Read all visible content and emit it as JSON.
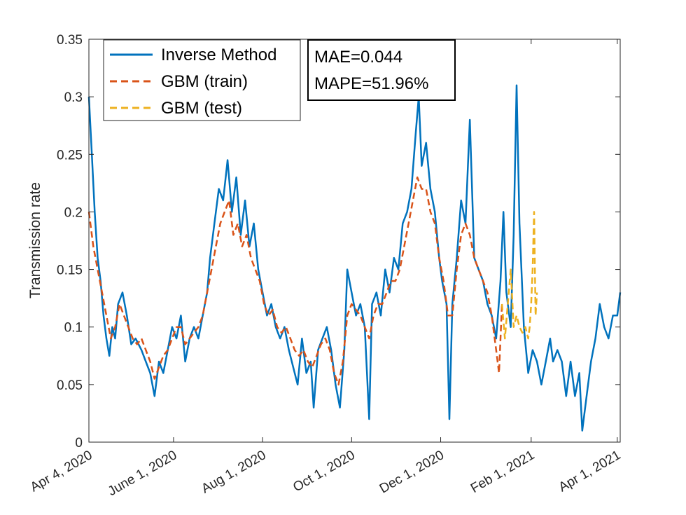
{
  "chart_data": {
    "type": "line",
    "title": "",
    "xlabel": "",
    "ylabel": "Transmission rate",
    "xlim": [
      "2020-04-04",
      "2021-04-03"
    ],
    "ylim": [
      0,
      0.35
    ],
    "grid": false,
    "legend_position": "top-left",
    "x_ticks": [
      {
        "date": "2020-04-04",
        "label": "Apr 4, 2020"
      },
      {
        "date": "2020-06-01",
        "label": "June 1, 2020"
      },
      {
        "date": "2020-08-01",
        "label": "Aug 1, 2020"
      },
      {
        "date": "2020-10-01",
        "label": "Oct 1, 2020"
      },
      {
        "date": "2020-12-01",
        "label": "Dec 1, 2020"
      },
      {
        "date": "2021-02-01",
        "label": "Feb 1, 2021"
      },
      {
        "date": "2021-04-01",
        "label": "Apr 1, 2021"
      }
    ],
    "y_ticks": [
      {
        "value": 0,
        "label": "0"
      },
      {
        "value": 0.05,
        "label": "0.05"
      },
      {
        "value": 0.1,
        "label": "0.1"
      },
      {
        "value": 0.15,
        "label": "0.15"
      },
      {
        "value": 0.2,
        "label": "0.2"
      },
      {
        "value": 0.25,
        "label": "0.25"
      },
      {
        "value": 0.3,
        "label": "0.3"
      },
      {
        "value": 0.35,
        "label": "0.35"
      }
    ],
    "annotation": [
      "MAE=0.044",
      "MAPE=51.96%"
    ],
    "series": [
      {
        "name": "Inverse Method",
        "color": "#0072BD",
        "style": "solid",
        "points": [
          [
            "2020-04-04",
            0.3
          ],
          [
            "2020-04-06",
            0.25
          ],
          [
            "2020-04-08",
            0.2
          ],
          [
            "2020-04-10",
            0.16
          ],
          [
            "2020-04-12",
            0.14
          ],
          [
            "2020-04-14",
            0.11
          ],
          [
            "2020-04-16",
            0.09
          ],
          [
            "2020-04-18",
            0.075
          ],
          [
            "2020-04-20",
            0.1
          ],
          [
            "2020-04-22",
            0.09
          ],
          [
            "2020-04-24",
            0.12
          ],
          [
            "2020-04-27",
            0.13
          ],
          [
            "2020-04-30",
            0.11
          ],
          [
            "2020-05-03",
            0.085
          ],
          [
            "2020-05-06",
            0.09
          ],
          [
            "2020-05-10",
            0.08
          ],
          [
            "2020-05-13",
            0.07
          ],
          [
            "2020-05-16",
            0.06
          ],
          [
            "2020-05-19",
            0.04
          ],
          [
            "2020-05-22",
            0.07
          ],
          [
            "2020-05-25",
            0.06
          ],
          [
            "2020-05-28",
            0.08
          ],
          [
            "2020-05-31",
            0.1
          ],
          [
            "2020-06-03",
            0.09
          ],
          [
            "2020-06-06",
            0.11
          ],
          [
            "2020-06-09",
            0.07
          ],
          [
            "2020-06-12",
            0.09
          ],
          [
            "2020-06-15",
            0.1
          ],
          [
            "2020-06-18",
            0.09
          ],
          [
            "2020-06-21",
            0.11
          ],
          [
            "2020-06-24",
            0.13
          ],
          [
            "2020-06-26",
            0.16
          ],
          [
            "2020-06-29",
            0.19
          ],
          [
            "2020-07-02",
            0.22
          ],
          [
            "2020-07-05",
            0.21
          ],
          [
            "2020-07-08",
            0.245
          ],
          [
            "2020-07-11",
            0.2
          ],
          [
            "2020-07-14",
            0.23
          ],
          [
            "2020-07-17",
            0.18
          ],
          [
            "2020-07-20",
            0.21
          ],
          [
            "2020-07-23",
            0.17
          ],
          [
            "2020-07-26",
            0.19
          ],
          [
            "2020-07-29",
            0.15
          ],
          [
            "2020-08-01",
            0.13
          ],
          [
            "2020-08-04",
            0.11
          ],
          [
            "2020-08-07",
            0.12
          ],
          [
            "2020-08-10",
            0.1
          ],
          [
            "2020-08-13",
            0.09
          ],
          [
            "2020-08-16",
            0.1
          ],
          [
            "2020-08-19",
            0.08
          ],
          [
            "2020-08-22",
            0.065
          ],
          [
            "2020-08-25",
            0.05
          ],
          [
            "2020-08-28",
            0.09
          ],
          [
            "2020-08-31",
            0.06
          ],
          [
            "2020-09-03",
            0.07
          ],
          [
            "2020-09-05",
            0.03
          ],
          [
            "2020-09-08",
            0.08
          ],
          [
            "2020-09-11",
            0.09
          ],
          [
            "2020-09-14",
            0.1
          ],
          [
            "2020-09-17",
            0.08
          ],
          [
            "2020-09-20",
            0.05
          ],
          [
            "2020-09-23",
            0.03
          ],
          [
            "2020-09-26",
            0.08
          ],
          [
            "2020-09-28",
            0.15
          ],
          [
            "2020-10-01",
            0.13
          ],
          [
            "2020-10-04",
            0.11
          ],
          [
            "2020-10-07",
            0.12
          ],
          [
            "2020-10-10",
            0.1
          ],
          [
            "2020-10-13",
            0.02
          ],
          [
            "2020-10-15",
            0.12
          ],
          [
            "2020-10-18",
            0.13
          ],
          [
            "2020-10-21",
            0.11
          ],
          [
            "2020-10-24",
            0.15
          ],
          [
            "2020-10-27",
            0.13
          ],
          [
            "2020-10-30",
            0.16
          ],
          [
            "2020-11-02",
            0.15
          ],
          [
            "2020-11-05",
            0.19
          ],
          [
            "2020-11-08",
            0.2
          ],
          [
            "2020-11-11",
            0.22
          ],
          [
            "2020-11-14",
            0.27
          ],
          [
            "2020-11-16",
            0.3
          ],
          [
            "2020-11-18",
            0.24
          ],
          [
            "2020-11-21",
            0.26
          ],
          [
            "2020-11-24",
            0.22
          ],
          [
            "2020-11-27",
            0.2
          ],
          [
            "2020-11-30",
            0.16
          ],
          [
            "2020-12-02",
            0.14
          ],
          [
            "2020-12-05",
            0.12
          ],
          [
            "2020-12-07",
            0.02
          ],
          [
            "2020-12-09",
            0.12
          ],
          [
            "2020-12-12",
            0.16
          ],
          [
            "2020-12-15",
            0.21
          ],
          [
            "2020-12-18",
            0.19
          ],
          [
            "2020-12-21",
            0.28
          ],
          [
            "2020-12-24",
            0.16
          ],
          [
            "2020-12-27",
            0.15
          ],
          [
            "2020-12-30",
            0.14
          ],
          [
            "2021-01-02",
            0.12
          ],
          [
            "2021-01-05",
            0.11
          ],
          [
            "2021-01-08",
            0.09
          ],
          [
            "2021-01-11",
            0.14
          ],
          [
            "2021-01-13",
            0.2
          ],
          [
            "2021-01-15",
            0.13
          ],
          [
            "2021-01-18",
            0.1
          ],
          [
            "2021-01-20",
            0.18
          ],
          [
            "2021-01-22",
            0.31
          ],
          [
            "2021-01-24",
            0.19
          ],
          [
            "2021-01-27",
            0.1
          ],
          [
            "2021-01-30",
            0.06
          ],
          [
            "2021-02-02",
            0.08
          ],
          [
            "2021-02-05",
            0.07
          ],
          [
            "2021-02-08",
            0.05
          ],
          [
            "2021-02-11",
            0.07
          ],
          [
            "2021-02-14",
            0.09
          ],
          [
            "2021-02-16",
            0.07
          ],
          [
            "2021-02-19",
            0.08
          ],
          [
            "2021-02-22",
            0.07
          ],
          [
            "2021-02-25",
            0.04
          ],
          [
            "2021-02-28",
            0.07
          ],
          [
            "2021-03-03",
            0.04
          ],
          [
            "2021-03-06",
            0.06
          ],
          [
            "2021-03-08",
            0.01
          ],
          [
            "2021-03-11",
            0.04
          ],
          [
            "2021-03-14",
            0.07
          ],
          [
            "2021-03-17",
            0.09
          ],
          [
            "2021-03-20",
            0.12
          ],
          [
            "2021-03-23",
            0.1
          ],
          [
            "2021-03-26",
            0.09
          ],
          [
            "2021-03-29",
            0.11
          ],
          [
            "2021-04-01",
            0.11
          ],
          [
            "2021-04-03",
            0.13
          ]
        ]
      },
      {
        "name": "GBM (train)",
        "color": "#D95319",
        "style": "dashed",
        "points": [
          [
            "2020-04-04",
            0.2
          ],
          [
            "2020-04-07",
            0.17
          ],
          [
            "2020-04-10",
            0.15
          ],
          [
            "2020-04-13",
            0.13
          ],
          [
            "2020-04-16",
            0.11
          ],
          [
            "2020-04-19",
            0.09
          ],
          [
            "2020-04-22",
            0.1
          ],
          [
            "2020-04-25",
            0.12
          ],
          [
            "2020-04-28",
            0.11
          ],
          [
            "2020-05-01",
            0.1
          ],
          [
            "2020-05-04",
            0.09
          ],
          [
            "2020-05-07",
            0.085
          ],
          [
            "2020-05-10",
            0.09
          ],
          [
            "2020-05-13",
            0.08
          ],
          [
            "2020-05-16",
            0.07
          ],
          [
            "2020-05-19",
            0.055
          ],
          [
            "2020-05-22",
            0.065
          ],
          [
            "2020-05-25",
            0.075
          ],
          [
            "2020-05-28",
            0.08
          ],
          [
            "2020-05-31",
            0.09
          ],
          [
            "2020-06-03",
            0.1
          ],
          [
            "2020-06-06",
            0.1
          ],
          [
            "2020-06-09",
            0.085
          ],
          [
            "2020-06-12",
            0.09
          ],
          [
            "2020-06-15",
            0.095
          ],
          [
            "2020-06-18",
            0.1
          ],
          [
            "2020-06-21",
            0.11
          ],
          [
            "2020-06-24",
            0.13
          ],
          [
            "2020-06-27",
            0.15
          ],
          [
            "2020-06-30",
            0.17
          ],
          [
            "2020-07-03",
            0.19
          ],
          [
            "2020-07-06",
            0.2
          ],
          [
            "2020-07-09",
            0.21
          ],
          [
            "2020-07-12",
            0.18
          ],
          [
            "2020-07-15",
            0.19
          ],
          [
            "2020-07-18",
            0.17
          ],
          [
            "2020-07-21",
            0.18
          ],
          [
            "2020-07-24",
            0.16
          ],
          [
            "2020-07-27",
            0.15
          ],
          [
            "2020-07-30",
            0.14
          ],
          [
            "2020-08-02",
            0.12
          ],
          [
            "2020-08-05",
            0.11
          ],
          [
            "2020-08-08",
            0.115
          ],
          [
            "2020-08-11",
            0.1
          ],
          [
            "2020-08-14",
            0.095
          ],
          [
            "2020-08-17",
            0.1
          ],
          [
            "2020-08-20",
            0.09
          ],
          [
            "2020-08-23",
            0.08
          ],
          [
            "2020-08-26",
            0.075
          ],
          [
            "2020-08-29",
            0.08
          ],
          [
            "2020-09-01",
            0.07
          ],
          [
            "2020-09-04",
            0.065
          ],
          [
            "2020-09-07",
            0.075
          ],
          [
            "2020-09-10",
            0.085
          ],
          [
            "2020-09-13",
            0.09
          ],
          [
            "2020-09-16",
            0.08
          ],
          [
            "2020-09-19",
            0.06
          ],
          [
            "2020-09-22",
            0.05
          ],
          [
            "2020-09-25",
            0.07
          ],
          [
            "2020-09-28",
            0.11
          ],
          [
            "2020-10-01",
            0.12
          ],
          [
            "2020-10-04",
            0.115
          ],
          [
            "2020-10-07",
            0.11
          ],
          [
            "2020-10-10",
            0.1
          ],
          [
            "2020-10-13",
            0.09
          ],
          [
            "2020-10-16",
            0.11
          ],
          [
            "2020-10-19",
            0.12
          ],
          [
            "2020-10-22",
            0.12
          ],
          [
            "2020-10-25",
            0.13
          ],
          [
            "2020-10-28",
            0.14
          ],
          [
            "2020-10-31",
            0.14
          ],
          [
            "2020-11-03",
            0.15
          ],
          [
            "2020-11-06",
            0.17
          ],
          [
            "2020-11-09",
            0.19
          ],
          [
            "2020-11-12",
            0.21
          ],
          [
            "2020-11-15",
            0.23
          ],
          [
            "2020-11-18",
            0.22
          ],
          [
            "2020-11-21",
            0.22
          ],
          [
            "2020-11-24",
            0.2
          ],
          [
            "2020-11-27",
            0.19
          ],
          [
            "2020-11-30",
            0.16
          ],
          [
            "2020-12-03",
            0.14
          ],
          [
            "2020-12-06",
            0.11
          ],
          [
            "2020-12-09",
            0.11
          ],
          [
            "2020-12-12",
            0.15
          ],
          [
            "2020-12-15",
            0.18
          ],
          [
            "2020-12-18",
            0.19
          ],
          [
            "2020-12-21",
            0.18
          ],
          [
            "2020-12-24",
            0.16
          ],
          [
            "2020-12-27",
            0.15
          ],
          [
            "2020-12-30",
            0.14
          ],
          [
            "2021-01-02",
            0.13
          ],
          [
            "2021-01-05",
            0.11
          ],
          [
            "2021-01-08",
            0.08
          ],
          [
            "2021-01-10",
            0.06
          ],
          [
            "2021-01-12",
            0.12
          ]
        ]
      },
      {
        "name": "GBM (test)",
        "color": "#EDB120",
        "style": "dashed",
        "points": [
          [
            "2021-01-12",
            0.12
          ],
          [
            "2021-01-14",
            0.09
          ],
          [
            "2021-01-16",
            0.12
          ],
          [
            "2021-01-18",
            0.15
          ],
          [
            "2021-01-20",
            0.1
          ],
          [
            "2021-01-22",
            0.11
          ],
          [
            "2021-01-24",
            0.1
          ],
          [
            "2021-01-26",
            0.095
          ],
          [
            "2021-01-28",
            0.1
          ],
          [
            "2021-01-30",
            0.09
          ],
          [
            "2021-01-31",
            0.1
          ],
          [
            "2021-02-01",
            0.12
          ],
          [
            "2021-02-02",
            0.15
          ],
          [
            "2021-02-03",
            0.2
          ],
          [
            "2021-02-04",
            0.11
          ],
          [
            "2021-02-05",
            0.13
          ]
        ]
      }
    ]
  }
}
